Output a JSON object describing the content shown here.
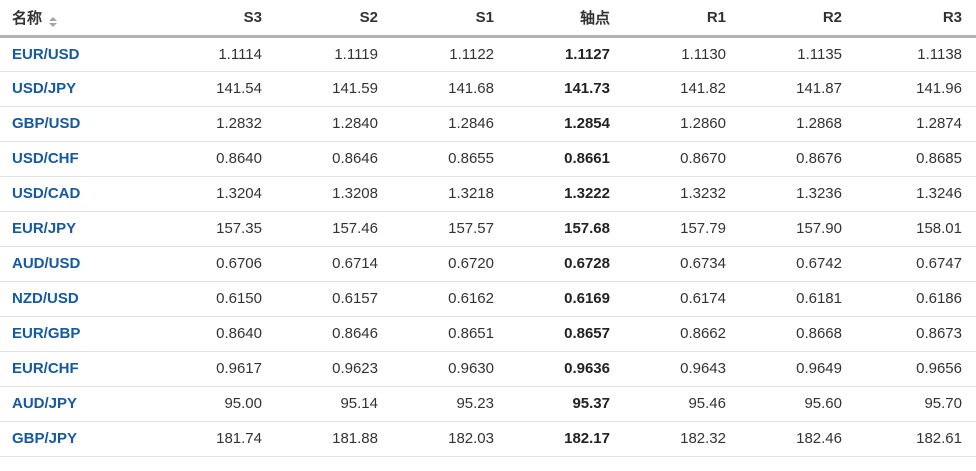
{
  "colors": {
    "pair_link_blue": "#1659a0",
    "header_text": "#333333",
    "number_text": "#333333",
    "header_border": "#b3b3b3",
    "row_border": "#e1e1e1",
    "sort_icon_gray": "#a4a4a4"
  },
  "table": {
    "columns": [
      {
        "key": "name",
        "label": "名称",
        "sortable": true
      },
      {
        "key": "s3",
        "label": "S3"
      },
      {
        "key": "s2",
        "label": "S2"
      },
      {
        "key": "s1",
        "label": "S1"
      },
      {
        "key": "pivot",
        "label": "轴点"
      },
      {
        "key": "r1",
        "label": "R1"
      },
      {
        "key": "r2",
        "label": "R2"
      },
      {
        "key": "r3",
        "label": "R3"
      }
    ],
    "rows": [
      {
        "name": "EUR/USD",
        "s3": "1.1114",
        "s2": "1.1119",
        "s1": "1.1122",
        "pivot": "1.1127",
        "r1": "1.1130",
        "r2": "1.1135",
        "r3": "1.1138"
      },
      {
        "name": "USD/JPY",
        "s3": "141.54",
        "s2": "141.59",
        "s1": "141.68",
        "pivot": "141.73",
        "r1": "141.82",
        "r2": "141.87",
        "r3": "141.96"
      },
      {
        "name": "GBP/USD",
        "s3": "1.2832",
        "s2": "1.2840",
        "s1": "1.2846",
        "pivot": "1.2854",
        "r1": "1.2860",
        "r2": "1.2868",
        "r3": "1.2874"
      },
      {
        "name": "USD/CHF",
        "s3": "0.8640",
        "s2": "0.8646",
        "s1": "0.8655",
        "pivot": "0.8661",
        "r1": "0.8670",
        "r2": "0.8676",
        "r3": "0.8685"
      },
      {
        "name": "USD/CAD",
        "s3": "1.3204",
        "s2": "1.3208",
        "s1": "1.3218",
        "pivot": "1.3222",
        "r1": "1.3232",
        "r2": "1.3236",
        "r3": "1.3246"
      },
      {
        "name": "EUR/JPY",
        "s3": "157.35",
        "s2": "157.46",
        "s1": "157.57",
        "pivot": "157.68",
        "r1": "157.79",
        "r2": "157.90",
        "r3": "158.01"
      },
      {
        "name": "AUD/USD",
        "s3": "0.6706",
        "s2": "0.6714",
        "s1": "0.6720",
        "pivot": "0.6728",
        "r1": "0.6734",
        "r2": "0.6742",
        "r3": "0.6747"
      },
      {
        "name": "NZD/USD",
        "s3": "0.6150",
        "s2": "0.6157",
        "s1": "0.6162",
        "pivot": "0.6169",
        "r1": "0.6174",
        "r2": "0.6181",
        "r3": "0.6186"
      },
      {
        "name": "EUR/GBP",
        "s3": "0.8640",
        "s2": "0.8646",
        "s1": "0.8651",
        "pivot": "0.8657",
        "r1": "0.8662",
        "r2": "0.8668",
        "r3": "0.8673"
      },
      {
        "name": "EUR/CHF",
        "s3": "0.9617",
        "s2": "0.9623",
        "s1": "0.9630",
        "pivot": "0.9636",
        "r1": "0.9643",
        "r2": "0.9649",
        "r3": "0.9656"
      },
      {
        "name": "AUD/JPY",
        "s3": "95.00",
        "s2": "95.14",
        "s1": "95.23",
        "pivot": "95.37",
        "r1": "95.46",
        "r2": "95.60",
        "r3": "95.70"
      },
      {
        "name": "GBP/JPY",
        "s3": "181.74",
        "s2": "181.88",
        "s1": "182.03",
        "pivot": "182.17",
        "r1": "182.32",
        "r2": "182.46",
        "r3": "182.61"
      }
    ]
  }
}
